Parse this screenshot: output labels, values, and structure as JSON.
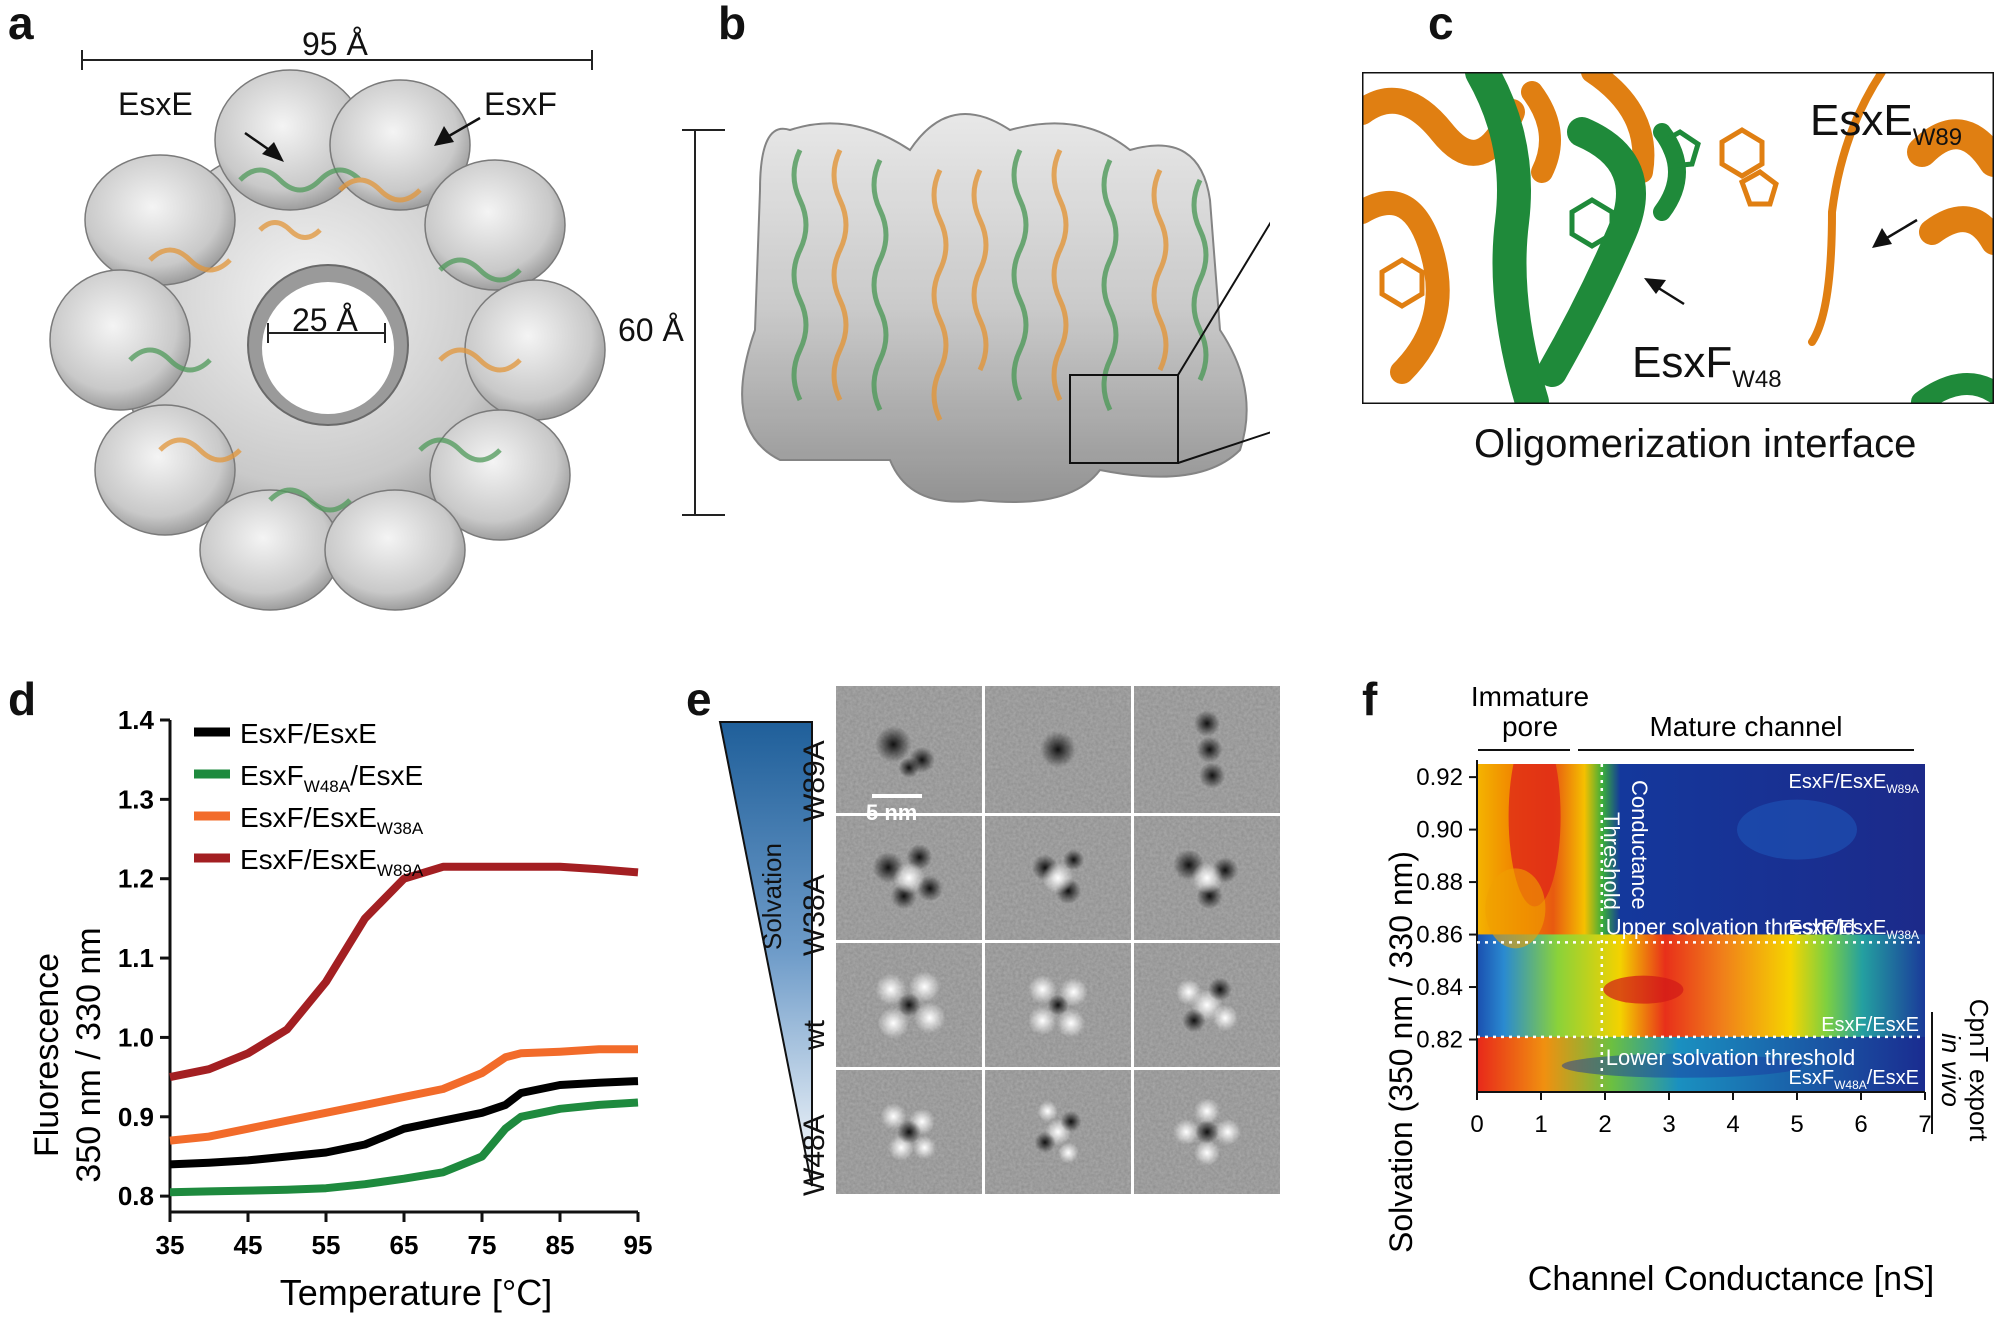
{
  "panels": {
    "a": {
      "letter": "a",
      "dim_top": "95 Å",
      "dim_pore": "25 Å",
      "label_esxe": "EsxE",
      "label_esxf": "EsxF"
    },
    "b": {
      "letter": "b",
      "dim_height": "60 Å"
    },
    "c": {
      "letter": "c",
      "label_esxe_base": "EsxE",
      "label_esxe_sub": "W89",
      "label_esxf_base": "EsxF",
      "label_esxf_sub": "W48",
      "caption": "Oligomerization interface"
    },
    "d": {
      "letter": "d"
    },
    "e": {
      "letter": "e",
      "gradient_label": "Solvation",
      "rows": [
        "W89A",
        "W38A",
        "wt",
        "W48A"
      ],
      "scalebar": "5 nm"
    },
    "f": {
      "letter": "f",
      "region_immature": "Immature pore",
      "region_immature_l1": "Immature",
      "region_immature_l2": "pore",
      "region_mature": "Mature channel",
      "conductance_l1": "Conductance",
      "conductance_l2": "Threshold",
      "upper": "Upper solvation threshold",
      "lower": "Lower solvation threshold",
      "cpnt_l1": "CpnT export",
      "cpnt_l2": "in vivo",
      "lab_w89a_base": "EsxF/EsxE",
      "lab_w89a_sub": "W89A",
      "lab_w38a_base": "EsxF/EsxE",
      "lab_w38a_sub": "W38A",
      "lab_wt": "EsxF/EsxE",
      "lab_w48a_base1": "EsxF",
      "lab_w48a_sub": "W48A",
      "lab_w48a_base2": "/EsxE"
    }
  },
  "chart_data": [
    {
      "type": "line",
      "xlabel": "Temperature [°C]",
      "ylabel": "Fluorescence 350 nm / 330 nm",
      "ylabel_l1": "Fluorescence",
      "ylabel_l2": "350 nm / 330 nm",
      "xlim": [
        35,
        95
      ],
      "ylim": [
        0.78,
        1.4
      ],
      "xticks": [
        "35",
        "45",
        "55",
        "65",
        "75",
        "85",
        "95"
      ],
      "yticks": [
        "0.8",
        "0.9",
        "1.0",
        "1.1",
        "1.2",
        "1.3",
        "1.4"
      ],
      "legend_position": "top-left",
      "x": [
        35,
        40,
        45,
        50,
        55,
        60,
        65,
        70,
        75,
        78,
        80,
        85,
        90,
        95
      ],
      "series": [
        {
          "name": "EsxF/EsxE",
          "color": "#000000",
          "legend_base": "EsxF/EsxE",
          "legend_sub": "",
          "legend_tail": "",
          "values": [
            0.84,
            0.842,
            0.845,
            0.85,
            0.855,
            0.865,
            0.885,
            0.895,
            0.905,
            0.915,
            0.93,
            0.94,
            0.943,
            0.945
          ]
        },
        {
          "name": "EsxF W48A/EsxE",
          "color": "#1e8a3e",
          "legend_base": "EsxF",
          "legend_sub": "W48A",
          "legend_tail": "/EsxE",
          "values": [
            0.805,
            0.806,
            0.807,
            0.808,
            0.81,
            0.815,
            0.822,
            0.83,
            0.85,
            0.885,
            0.9,
            0.91,
            0.915,
            0.918
          ]
        },
        {
          "name": "EsxF/EsxE W38A",
          "color": "#f26b2a",
          "legend_base": "EsxF/EsxE",
          "legend_sub": "W38A",
          "legend_tail": "",
          "values": [
            0.87,
            0.875,
            0.885,
            0.895,
            0.905,
            0.915,
            0.925,
            0.935,
            0.955,
            0.975,
            0.98,
            0.982,
            0.985,
            0.985
          ]
        },
        {
          "name": "EsxF/EsxE W89A",
          "color": "#a31f22",
          "legend_base": "EsxF/EsxE",
          "legend_sub": "W89A",
          "legend_tail": "",
          "values": [
            0.95,
            0.96,
            0.98,
            1.01,
            1.07,
            1.15,
            1.2,
            1.215,
            1.215,
            1.215,
            1.215,
            1.215,
            1.212,
            1.208
          ]
        }
      ]
    },
    {
      "type": "heatmap",
      "xlabel": "Channel Conductance [nS]",
      "ylabel": "Solvation (350 nm / 330 nm)",
      "xlim": [
        0,
        7
      ],
      "ylim": [
        0.8,
        0.925
      ],
      "xticks": [
        "0",
        "1",
        "2",
        "3",
        "4",
        "5",
        "6",
        "7"
      ],
      "yticks": [
        "0.82",
        "0.84",
        "0.86",
        "0.88",
        "0.90",
        "0.92"
      ],
      "thresholds": {
        "conductance": 1.95,
        "upper_solvation": 0.857,
        "lower_solvation": 0.821
      }
    }
  ]
}
